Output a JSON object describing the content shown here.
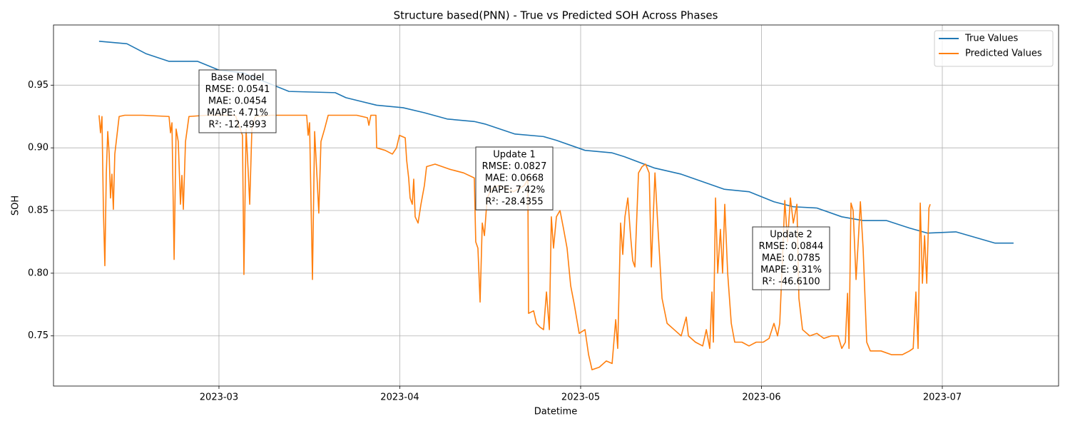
{
  "chart_data": {
    "type": "line",
    "title": "Structure based(PNN) - True vs Predicted SOH Across Phases",
    "xlabel": "Datetime",
    "ylabel": "SOH",
    "xlim": [
      2.085,
      7.643
    ],
    "ylim": [
      0.71,
      0.998
    ],
    "xticks": [
      {
        "value": 3,
        "label": "2023-03"
      },
      {
        "value": 4,
        "label": "2023-04"
      },
      {
        "value": 5,
        "label": "2023-05"
      },
      {
        "value": 6,
        "label": "2023-06"
      },
      {
        "value": 7,
        "label": "2023-07"
      }
    ],
    "yticks": [
      0.75,
      {
        "value": 0.8,
        "label": "0.80"
      },
      0.85,
      {
        "value": 0.9,
        "label": "0.90"
      },
      0.95
    ],
    "grid": true,
    "legend": "upper right",
    "series": [
      {
        "name": "True Values",
        "color": "#1f77b4",
        "x": [
          2.337,
          2.491,
          2.598,
          2.724,
          2.882,
          3.0,
          3.13,
          3.249,
          3.387,
          3.643,
          3.702,
          3.872,
          4.018,
          4.136,
          4.262,
          4.412,
          4.471,
          4.637,
          4.795,
          4.866,
          5.024,
          5.174,
          5.241,
          5.406,
          5.556,
          5.793,
          5.931,
          6.069,
          6.176,
          6.306,
          6.444,
          6.562,
          6.692,
          6.819,
          6.917,
          7.075,
          7.292,
          7.394
        ],
        "values": [
          0.985,
          0.983,
          0.975,
          0.969,
          0.969,
          0.962,
          0.96,
          0.953,
          0.945,
          0.944,
          0.94,
          0.934,
          0.932,
          0.928,
          0.923,
          0.921,
          0.919,
          0.911,
          0.909,
          0.906,
          0.898,
          0.896,
          0.893,
          0.884,
          0.879,
          0.867,
          0.865,
          0.857,
          0.853,
          0.852,
          0.845,
          0.842,
          0.842,
          0.836,
          0.832,
          0.833,
          0.824,
          0.824
        ]
      },
      {
        "name": "Predicted Values",
        "color": "#ff7f0e",
        "x": [
          2.337,
          2.345,
          2.353,
          2.361,
          2.369,
          2.377,
          2.385,
          2.393,
          2.4,
          2.408,
          2.416,
          2.424,
          2.436,
          2.448,
          2.479,
          2.578,
          2.724,
          2.732,
          2.74,
          2.752,
          2.763,
          2.775,
          2.787,
          2.795,
          2.803,
          2.815,
          2.834,
          2.933,
          3.091,
          3.13,
          3.138,
          3.15,
          3.162,
          3.17,
          3.182,
          3.201,
          3.288,
          3.485,
          3.493,
          3.501,
          3.517,
          3.529,
          3.541,
          3.552,
          3.564,
          3.584,
          3.604,
          3.762,
          3.821,
          3.829,
          3.84,
          3.868,
          3.872,
          3.919,
          3.959,
          3.982,
          3.998,
          4.03,
          4.038,
          4.049,
          4.057,
          4.069,
          4.077,
          4.085,
          4.101,
          4.117,
          4.136,
          4.148,
          4.195,
          4.274,
          4.353,
          4.412,
          4.42,
          4.432,
          4.444,
          4.456,
          4.468,
          4.483,
          4.511,
          4.551,
          4.629,
          4.689,
          4.708,
          4.712,
          4.74,
          4.756,
          4.775,
          4.795,
          4.811,
          4.827,
          4.838,
          4.85,
          4.866,
          4.886,
          4.906,
          4.925,
          4.945,
          4.965,
          4.992,
          5.024,
          5.044,
          5.063,
          5.103,
          5.142,
          5.174,
          5.194,
          5.205,
          5.221,
          5.233,
          5.245,
          5.261,
          5.276,
          5.288,
          5.3,
          5.32,
          5.34,
          5.359,
          5.379,
          5.391,
          5.411,
          5.426,
          5.45,
          5.478,
          5.517,
          5.556,
          5.584,
          5.596,
          5.635,
          5.675,
          5.695,
          5.714,
          5.726,
          5.734,
          5.746,
          5.758,
          5.773,
          5.785,
          5.797,
          5.813,
          5.833,
          5.852,
          5.892,
          5.931,
          5.971,
          6.01,
          6.042,
          6.069,
          6.089,
          6.101,
          6.113,
          6.129,
          6.144,
          6.16,
          6.176,
          6.196,
          6.207,
          6.227,
          6.267,
          6.306,
          6.345,
          6.385,
          6.424,
          6.444,
          6.464,
          6.476,
          6.484,
          6.495,
          6.507,
          6.523,
          6.535,
          6.547,
          6.562,
          6.582,
          6.602,
          6.661,
          6.72,
          6.779,
          6.819,
          6.839,
          6.854,
          6.866,
          6.878,
          6.89,
          6.902,
          6.914,
          6.926,
          6.933
        ],
        "values": [
          0.926,
          0.912,
          0.925,
          0.85,
          0.806,
          0.88,
          0.913,
          0.895,
          0.86,
          0.879,
          0.851,
          0.895,
          0.91,
          0.925,
          0.926,
          0.926,
          0.925,
          0.912,
          0.92,
          0.811,
          0.915,
          0.905,
          0.855,
          0.878,
          0.851,
          0.905,
          0.925,
          0.926,
          0.926,
          0.91,
          0.799,
          0.915,
          0.88,
          0.855,
          0.915,
          0.925,
          0.926,
          0.926,
          0.91,
          0.92,
          0.795,
          0.913,
          0.88,
          0.848,
          0.905,
          0.915,
          0.926,
          0.926,
          0.924,
          0.918,
          0.926,
          0.926,
          0.9,
          0.898,
          0.895,
          0.9,
          0.91,
          0.908,
          0.89,
          0.876,
          0.86,
          0.855,
          0.875,
          0.845,
          0.84,
          0.855,
          0.87,
          0.885,
          0.887,
          0.883,
          0.88,
          0.876,
          0.825,
          0.82,
          0.777,
          0.84,
          0.83,
          0.86,
          0.868,
          0.87,
          0.865,
          0.87,
          0.875,
          0.768,
          0.77,
          0.76,
          0.757,
          0.755,
          0.785,
          0.755,
          0.845,
          0.82,
          0.845,
          0.85,
          0.835,
          0.82,
          0.79,
          0.775,
          0.752,
          0.755,
          0.735,
          0.723,
          0.725,
          0.73,
          0.728,
          0.763,
          0.74,
          0.84,
          0.815,
          0.845,
          0.86,
          0.83,
          0.81,
          0.805,
          0.88,
          0.885,
          0.887,
          0.88,
          0.805,
          0.88,
          0.84,
          0.78,
          0.76,
          0.755,
          0.75,
          0.765,
          0.75,
          0.745,
          0.742,
          0.755,
          0.74,
          0.785,
          0.745,
          0.86,
          0.8,
          0.835,
          0.8,
          0.855,
          0.8,
          0.76,
          0.745,
          0.745,
          0.742,
          0.745,
          0.745,
          0.748,
          0.76,
          0.75,
          0.76,
          0.8,
          0.858,
          0.825,
          0.86,
          0.84,
          0.855,
          0.78,
          0.755,
          0.75,
          0.752,
          0.748,
          0.75,
          0.75,
          0.74,
          0.745,
          0.784,
          0.74,
          0.856,
          0.85,
          0.795,
          0.825,
          0.857,
          0.82,
          0.745,
          0.738,
          0.738,
          0.735,
          0.735,
          0.738,
          0.74,
          0.785,
          0.74,
          0.856,
          0.792,
          0.83,
          0.792,
          0.852,
          0.855
        ]
      }
    ],
    "annotations": [
      {
        "lines": [
          "Base Model",
          "RMSE: 0.0541",
          "MAE: 0.0454",
          "MAPE: 4.71%",
          "R²: -12.4993"
        ]
      },
      {
        "lines": [
          "Update 1",
          "RMSE: 0.0827",
          "MAE: 0.0668",
          "MAPE: 7.42%",
          "R²: -28.4355"
        ]
      },
      {
        "lines": [
          "Update 2",
          "RMSE: 0.0844",
          "MAE: 0.0785",
          "MAPE: 9.31%",
          "R²: -46.6100"
        ]
      }
    ]
  }
}
